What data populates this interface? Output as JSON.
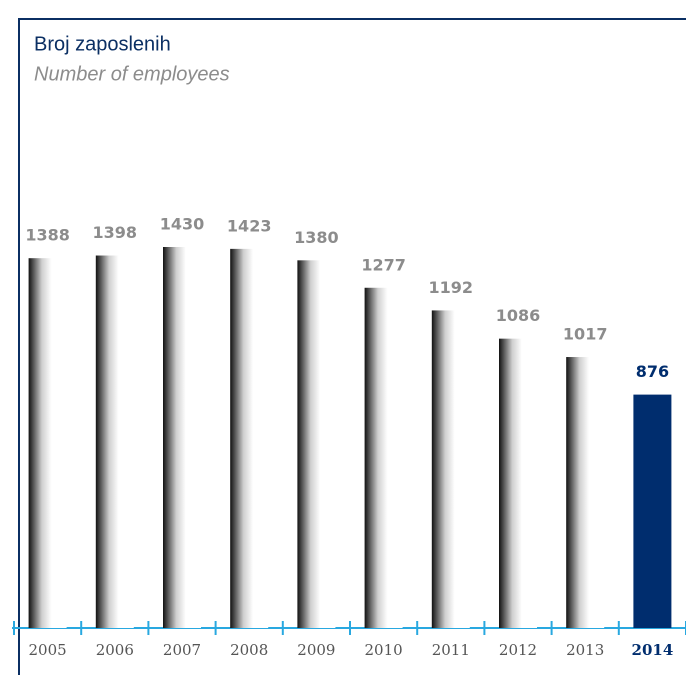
{
  "chart_data": {
    "type": "bar",
    "title": "Broj zaposlenih",
    "subtitle": "Number of employees",
    "categories": [
      "2005",
      "2006",
      "2007",
      "2008",
      "2009",
      "2010",
      "2011",
      "2012",
      "2013",
      "2014"
    ],
    "values": [
      1388,
      1398,
      1430,
      1423,
      1380,
      1277,
      1192,
      1086,
      1017,
      876
    ],
    "color": "#111111",
    "highlight_color": "#002d6e",
    "highlight_category": "2014",
    "label_color": "#8c8c8c",
    "axis_color": "#29a8e0",
    "frame_color": "#0b2f63"
  }
}
